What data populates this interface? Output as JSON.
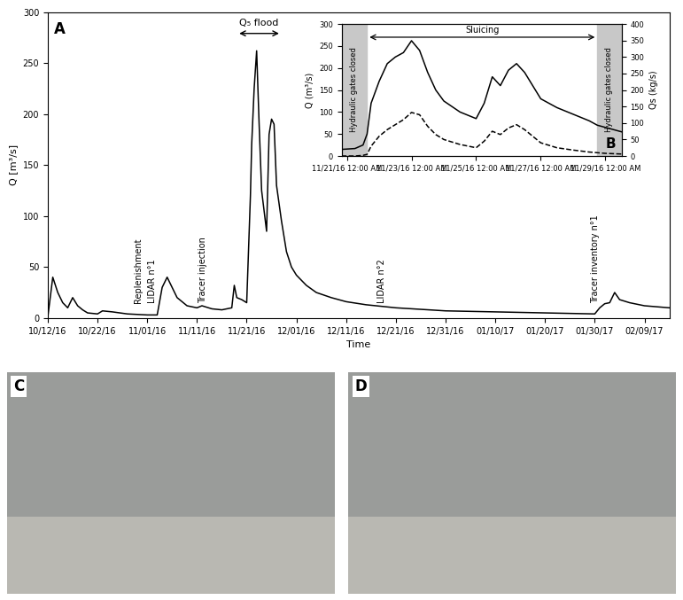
{
  "chart_data": [
    {
      "type": "line",
      "panel_label": "A",
      "x_label": "Time",
      "y_label": "Q [m³/s]",
      "x": [
        "2016-10-12T00:00",
        "2016-10-13T00:00",
        "2016-10-14T00:00",
        "2016-10-15T00:00",
        "2016-10-16T00:00",
        "2016-10-17T00:00",
        "2016-10-18T00:00",
        "2016-10-19T00:00",
        "2016-10-20T00:00",
        "2016-10-22T00:00",
        "2016-10-23T00:00",
        "2016-10-25T00:00",
        "2016-10-28T00:00",
        "2016-11-01T00:00",
        "2016-11-03T00:00",
        "2016-11-04T00:00",
        "2016-11-05T00:00",
        "2016-11-06T00:00",
        "2016-11-07T00:00",
        "2016-11-09T00:00",
        "2016-11-11T00:00",
        "2016-11-12T00:00",
        "2016-11-14T00:00",
        "2016-11-16T00:00",
        "2016-11-18T00:00",
        "2016-11-18T12:00",
        "2016-11-19T00:00",
        "2016-11-20T00:00",
        "2016-11-21T00:00",
        "2016-11-21T18:00",
        "2016-11-22T00:00",
        "2016-11-22T12:00",
        "2016-11-23T00:00",
        "2016-11-23T12:00",
        "2016-11-24T00:00",
        "2016-11-25T00:00",
        "2016-11-25T12:00",
        "2016-11-26T00:00",
        "2016-11-26T12:00",
        "2016-11-27T00:00",
        "2016-11-28T00:00",
        "2016-11-29T00:00",
        "2016-11-30T00:00",
        "2016-12-01T00:00",
        "2016-12-03T00:00",
        "2016-12-05T00:00",
        "2016-12-08T00:00",
        "2016-12-11T00:00",
        "2016-12-15T00:00",
        "2016-12-21T00:00",
        "2016-12-31T00:00",
        "2017-01-10T00:00",
        "2017-01-20T00:00",
        "2017-01-30T00:00",
        "2017-01-31T00:00",
        "2017-02-01T00:00",
        "2017-02-02T00:00",
        "2017-02-03T00:00",
        "2017-02-04T00:00",
        "2017-02-06T00:00",
        "2017-02-09T00:00",
        "2017-02-14T00:00"
      ],
      "series": [
        {
          "color": "#000000",
          "line_style": "solid",
          "values": [
            1,
            40,
            25,
            15,
            10,
            20,
            12,
            8,
            5,
            4,
            7,
            6,
            4,
            3,
            3,
            30,
            40,
            30,
            20,
            12,
            10,
            12,
            9,
            8,
            10,
            32,
            20,
            18,
            15,
            120,
            170,
            225,
            262,
            190,
            125,
            85,
            180,
            195,
            190,
            130,
            95,
            65,
            50,
            42,
            32,
            25,
            20,
            16,
            13,
            10,
            7,
            6,
            5,
            4,
            10,
            14,
            15,
            25,
            18,
            15,
            12,
            10
          ]
        }
      ],
      "xlim": [
        "2016-10-12T00:00",
        "2017-02-14T00:00"
      ],
      "xticks": [
        {
          "value": "2016-10-12T00:00",
          "label": "10/12/16"
        },
        {
          "value": "2016-10-22T00:00",
          "label": "10/22/16"
        },
        {
          "value": "2016-11-01T00:00",
          "label": "11/01/16"
        },
        {
          "value": "2016-11-11T00:00",
          "label": "11/11/16"
        },
        {
          "value": "2016-11-21T00:00",
          "label": "11/21/16"
        },
        {
          "value": "2016-12-01T00:00",
          "label": "12/01/16"
        },
        {
          "value": "2016-12-11T00:00",
          "label": "12/11/16"
        },
        {
          "value": "2016-12-21T00:00",
          "label": "12/21/16"
        },
        {
          "value": "2016-12-31T00:00",
          "label": "12/31/16"
        },
        {
          "value": "2017-01-10T00:00",
          "label": "01/10/17"
        },
        {
          "value": "2017-01-20T00:00",
          "label": "01/20/17"
        },
        {
          "value": "2017-01-30T00:00",
          "label": "01/30/17"
        },
        {
          "value": "2017-02-09T00:00",
          "label": "02/09/17"
        }
      ],
      "ylim": [
        0,
        300
      ],
      "yticks": [
        0,
        50,
        100,
        150,
        200,
        250,
        300
      ],
      "grid": false,
      "annotations": [
        {
          "text": "Replenishment",
          "x": "2016-10-31T00:00"
        },
        {
          "text": "LIDAR n°1",
          "x": "2016-11-03T00:00"
        },
        {
          "text": "Tracer injection",
          "x": "2016-11-13T00:00"
        },
        {
          "text": "LIDAR n°2",
          "x": "2016-12-19T00:00"
        },
        {
          "text": "Tracer inventory n°1",
          "x": "2017-01-31T00:00"
        },
        {
          "text": "Q₅ flood",
          "start": "2016-11-19T00:00",
          "end": "2016-11-28T00:00"
        }
      ]
    },
    {
      "type": "line",
      "panel_label": "B",
      "y_label": "Q (m³/s)",
      "y2_label": "Qs (kg/s)",
      "x": [
        "2016-11-20T20:00",
        "2016-11-21T06:00",
        "2016-11-21T12:00",
        "2016-11-21T15:00",
        "2016-11-21T18:00",
        "2016-11-22T00:00",
        "2016-11-22T06:00",
        "2016-11-22T12:00",
        "2016-11-22T18:00",
        "2016-11-23T00:00",
        "2016-11-23T06:00",
        "2016-11-23T12:00",
        "2016-11-23T18:00",
        "2016-11-24T00:00",
        "2016-11-24T12:00",
        "2016-11-25T00:00",
        "2016-11-25T06:00",
        "2016-11-25T12:00",
        "2016-11-25T18:00",
        "2016-11-26T00:00",
        "2016-11-26T06:00",
        "2016-11-26T12:00",
        "2016-11-26T18:00",
        "2016-11-27T00:00",
        "2016-11-27T12:00",
        "2016-11-28T00:00",
        "2016-11-28T12:00",
        "2016-11-28T18:00",
        "2016-11-29T00:00",
        "2016-11-29T12:00"
      ],
      "series": [
        {
          "color": "#000000",
          "line_style": "solid",
          "values": [
            15,
            17,
            25,
            50,
            120,
            170,
            210,
            225,
            235,
            262,
            240,
            190,
            150,
            125,
            100,
            85,
            120,
            180,
            160,
            195,
            210,
            190,
            160,
            130,
            110,
            95,
            80,
            70,
            65,
            55
          ]
        },
        {
          "color": "#000000",
          "line_style": "dashed",
          "axis": "y2",
          "values": [
            0,
            0,
            2,
            5,
            30,
            60,
            80,
            95,
            110,
            132,
            125,
            90,
            65,
            50,
            35,
            25,
            45,
            75,
            65,
            85,
            95,
            80,
            60,
            40,
            25,
            18,
            12,
            10,
            8,
            6
          ]
        }
      ],
      "xlim": [
        "2016-11-20T20:00",
        "2016-11-29T12:00"
      ],
      "xticks": [
        {
          "value": "2016-11-21T00:00",
          "label": "11/21/16 12:00 AM"
        },
        {
          "value": "2016-11-23T00:00",
          "label": "11/23/16 12:00 AM"
        },
        {
          "value": "2016-11-25T00:00",
          "label": "11/25/16 12:00 AM"
        },
        {
          "value": "2016-11-27T00:00",
          "label": "11/27/16 12:00 AM"
        },
        {
          "value": "2016-11-29T00:00",
          "label": "11/29/16 12:00 AM"
        }
      ],
      "ylim": [
        0,
        300
      ],
      "yticks": [
        0,
        50,
        100,
        150,
        200,
        250,
        300
      ],
      "y2lim": [
        0,
        400
      ],
      "y2ticks": [
        0,
        50,
        100,
        150,
        200,
        250,
        300,
        350,
        400
      ],
      "grid": false,
      "spans": [
        {
          "text": "Hydraulic gates closed",
          "start": "2016-11-20T20:00",
          "end": "2016-11-21T15:00"
        },
        {
          "text": "Hydraulic gates closed",
          "start": "2016-11-28T18:00",
          "end": "2016-11-29T12:00"
        }
      ],
      "annotations": [
        {
          "text": "Sluicing",
          "start": "2016-11-21T15:00",
          "end": "2016-11-28T18:00"
        }
      ]
    }
  ],
  "photos": [
    {
      "label": "C"
    },
    {
      "label": "D"
    }
  ]
}
